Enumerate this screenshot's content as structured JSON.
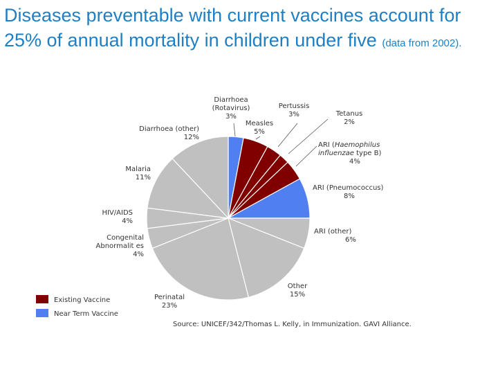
{
  "title": {
    "main": "Diseases preventable with current vaccines account for 25% of annual mortality in children under five",
    "note": "(data from 2002)."
  },
  "colors": {
    "title": "#1e7fc4",
    "existing_vaccine": "#800000",
    "near_term_vaccine": "#4f7ff0",
    "other": "#c0c0c0",
    "slice_border": "#ffffff"
  },
  "chart_data": {
    "type": "pie",
    "start": "top, clockwise",
    "slices": [
      {
        "label": "Diarrhoea\n(Rotavirus)",
        "pct_text": "3%",
        "value": 3,
        "category": "near_term_vaccine"
      },
      {
        "label": "Measles",
        "pct_text": "5%",
        "value": 5,
        "category": "existing_vaccine"
      },
      {
        "label": "Pertussis",
        "pct_text": "3%",
        "value": 3,
        "category": "existing_vaccine"
      },
      {
        "label": "Tetanus",
        "pct_text": "2%",
        "value": 2,
        "category": "existing_vaccine"
      },
      {
        "label": "ARI (Haemophilus\ninfluenzae type B)",
        "pct_text": "4%",
        "value": 4,
        "category": "existing_vaccine"
      },
      {
        "label": "ARI (Pneumococcus)",
        "pct_text": "8%",
        "value": 8,
        "category": "near_term_vaccine"
      },
      {
        "label": "ARI (other)",
        "pct_text": "6%",
        "value": 6,
        "category": "other"
      },
      {
        "label": "Other",
        "pct_text": "15%",
        "value": 15,
        "category": "other"
      },
      {
        "label": "Perinatal",
        "pct_text": "23%",
        "value": 23,
        "category": "other"
      },
      {
        "label": "Congenital\nAbnormalit es",
        "pct_text": "4%",
        "value": 4,
        "category": "other"
      },
      {
        "label": "HIV/AIDS",
        "pct_text": "4%",
        "value": 4,
        "category": "other"
      },
      {
        "label": "Malaria",
        "pct_text": "11%",
        "value": 11,
        "category": "other"
      },
      {
        "label": "Diarrhoea (other)",
        "pct_text": "12%",
        "value": 12,
        "category": "other"
      }
    ],
    "legend": [
      {
        "label": "Existing Vaccine",
        "category": "existing_vaccine"
      },
      {
        "label": "Near Term Vaccine",
        "category": "near_term_vaccine"
      }
    ],
    "legend_position": "bottom-left",
    "source": "Source: UNICEF/342/Thomas L. Kelly, in Immunization. GAVI Alliance."
  }
}
